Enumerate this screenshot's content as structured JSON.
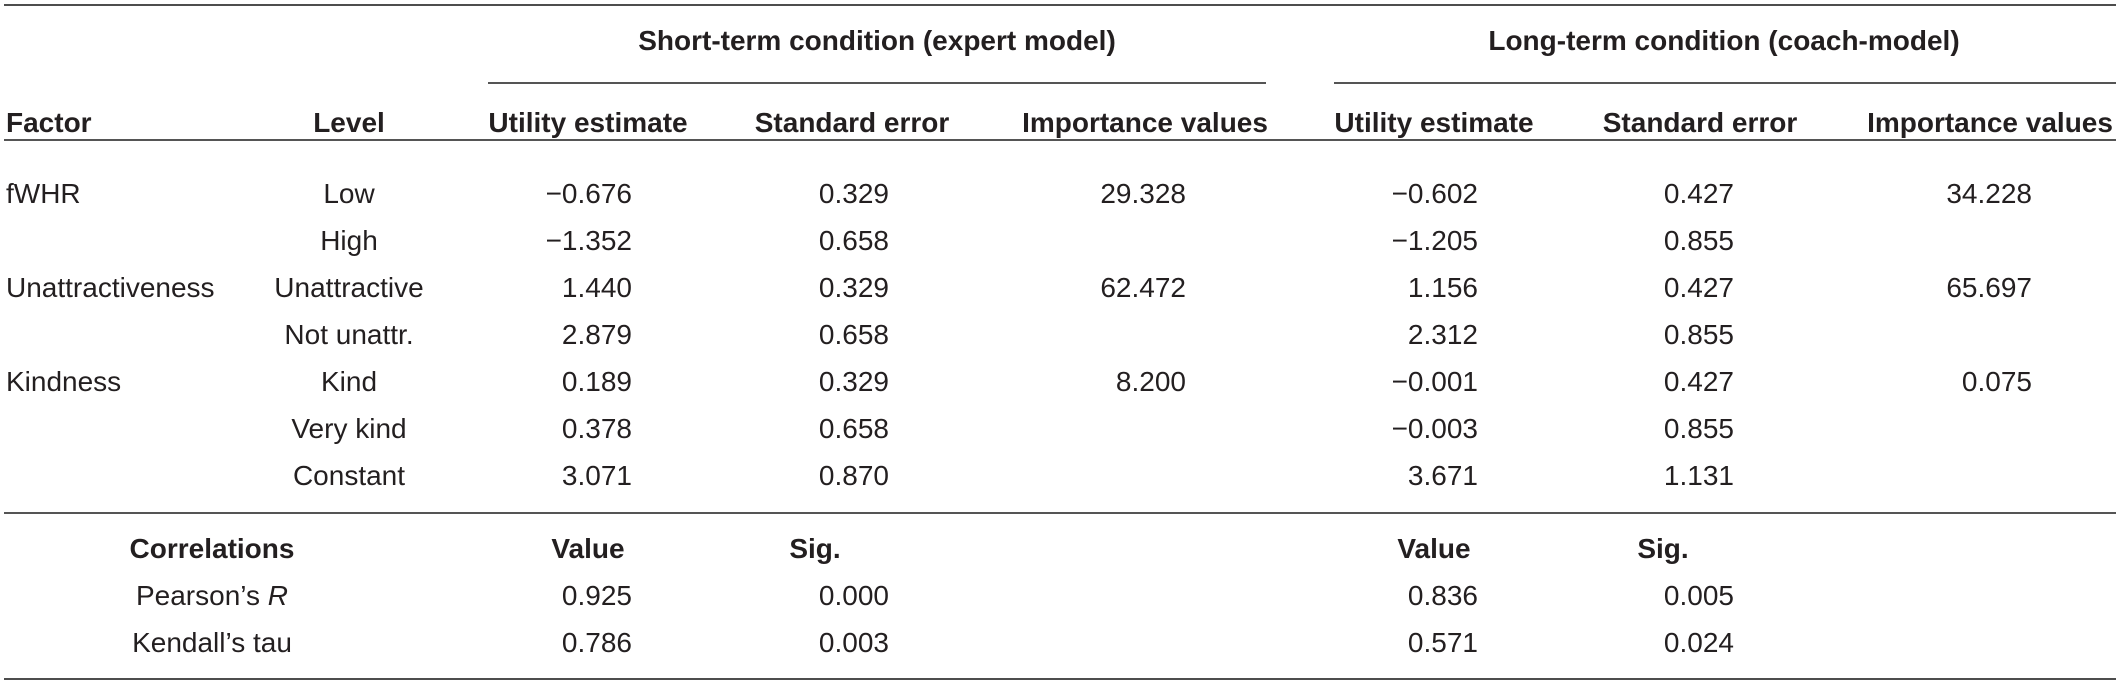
{
  "groups": {
    "short": "Short-term condition (expert model)",
    "long": "Long-term condition (coach-model)"
  },
  "columns": {
    "factor": "Factor",
    "level": "Level",
    "utility": "Utility estimate",
    "stderr": "Standard error",
    "importance": "Importance values"
  },
  "rows": [
    {
      "factor": "fWHR",
      "level": "Low",
      "s_util": "−0.676",
      "s_se": "0.329",
      "s_imp": "29.328",
      "l_util": "−0.602",
      "l_se": "0.427",
      "l_imp": "34.228"
    },
    {
      "factor": "",
      "level": "High",
      "s_util": "−1.352",
      "s_se": "0.658",
      "s_imp": "",
      "l_util": "−1.205",
      "l_se": "0.855",
      "l_imp": ""
    },
    {
      "factor": "Unattractiveness",
      "level": "Unattractive",
      "s_util": "1.440",
      "s_se": "0.329",
      "s_imp": "62.472",
      "l_util": "1.156",
      "l_se": "0.427",
      "l_imp": "65.697"
    },
    {
      "factor": "",
      "level": "Not unattr.",
      "s_util": "2.879",
      "s_se": "0.658",
      "s_imp": "",
      "l_util": "2.312",
      "l_se": "0.855",
      "l_imp": ""
    },
    {
      "factor": "Kindness",
      "level": "Kind",
      "s_util": "0.189",
      "s_se": "0.329",
      "s_imp": "8.200",
      "l_util": "−0.001",
      "l_se": "0.427",
      "l_imp": "0.075"
    },
    {
      "factor": "",
      "level": "Very kind",
      "s_util": "0.378",
      "s_se": "0.658",
      "s_imp": "",
      "l_util": "−0.003",
      "l_se": "0.855",
      "l_imp": ""
    },
    {
      "factor": "",
      "level": "Constant",
      "s_util": "3.071",
      "s_se": "0.870",
      "s_imp": "",
      "l_util": "3.671",
      "l_se": "1.131",
      "l_imp": ""
    }
  ],
  "correlations": {
    "header": "Correlations",
    "value": "Value",
    "sig": "Sig.",
    "pearson_label": "Pearson’s ",
    "pearson_symbol": "R",
    "kendall_label": "Kendall’s tau",
    "pearson": {
      "s_val": "0.925",
      "s_sig": "0.000",
      "l_val": "0.836",
      "l_sig": "0.005"
    },
    "kendall": {
      "s_val": "0.786",
      "s_sig": "0.003",
      "l_val": "0.571",
      "l_sig": "0.024"
    }
  }
}
